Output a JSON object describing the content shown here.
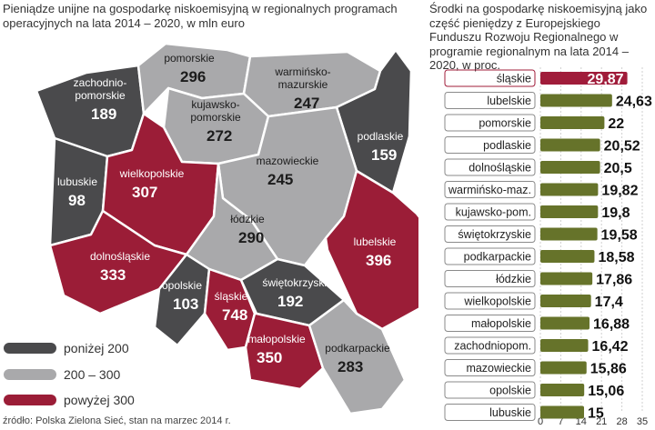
{
  "left_title": "Pieniądze unijne na gospodarkę niskoemisyjną w regionalnych programach operacyjnych na lata 2014 – 2020, w mln euro",
  "right_title": "Środki na gospodarkę niskoemisyjną jako część pieniędzy z Europejskiego Funduszu Rozwoju Regionalnego w programie regionalnym na lata 2014 – 2020, w proc.",
  "source": "źródło: Polska Zielona Sieć, stan na marzec 2014 r.",
  "colors": {
    "dark": "#4a4a4c",
    "mid": "#a9a9ab",
    "red": "#9b1d37",
    "bar": "#66732a",
    "highlight": "#a01c3a"
  },
  "legend": [
    {
      "label": "poniżej 200",
      "color": "#4a4a4c"
    },
    {
      "label": "200 – 300",
      "color": "#a9a9ab"
    },
    {
      "label": "powyżej 300",
      "color": "#9b1d37"
    }
  ],
  "chart_data": [
    {
      "type": "choropleth-map",
      "regions": [
        {
          "name": "zachodnio-pomorskie",
          "label_lines": [
            "zachodnio-",
            "pomorskie"
          ],
          "value": 189,
          "class": "dark"
        },
        {
          "name": "pomorskie",
          "label_lines": [
            "pomorskie"
          ],
          "value": 296,
          "class": "mid"
        },
        {
          "name": "warmińsko-mazurskie",
          "label_lines": [
            "warmińsko-",
            "mazurskie"
          ],
          "value": 247,
          "class": "mid"
        },
        {
          "name": "podlaskie",
          "label_lines": [
            "podlaskie"
          ],
          "value": 159,
          "class": "dark"
        },
        {
          "name": "kujawsko-pomorskie",
          "label_lines": [
            "kujawsko-",
            "pomorskie"
          ],
          "value": 272,
          "class": "mid"
        },
        {
          "name": "lubuskie",
          "label_lines": [
            "lubuskie"
          ],
          "value": 98,
          "class": "dark"
        },
        {
          "name": "wielkopolskie",
          "label_lines": [
            "wielkopolskie"
          ],
          "value": 307,
          "class": "red"
        },
        {
          "name": "mazowieckie",
          "label_lines": [
            "mazowieckie"
          ],
          "value": 245,
          "class": "mid"
        },
        {
          "name": "łódzkie",
          "label_lines": [
            "łódzkie"
          ],
          "value": 290,
          "class": "mid"
        },
        {
          "name": "lubelskie",
          "label_lines": [
            "lubelskie"
          ],
          "value": 396,
          "class": "red"
        },
        {
          "name": "dolnośląskie",
          "label_lines": [
            "dolnośląskie"
          ],
          "value": 333,
          "class": "red"
        },
        {
          "name": "opolskie",
          "label_lines": [
            "opolskie"
          ],
          "value": 103,
          "class": "dark"
        },
        {
          "name": "śląskie",
          "label_lines": [
            "śląskie"
          ],
          "value": 748,
          "class": "red"
        },
        {
          "name": "świętokrzyskie",
          "label_lines": [
            "świętokrzyskie"
          ],
          "value": 192,
          "class": "dark"
        },
        {
          "name": "małopolskie",
          "label_lines": [
            "małopolskie"
          ],
          "value": 350,
          "class": "red"
        },
        {
          "name": "podkarpackie",
          "label_lines": [
            "podkarpackie"
          ],
          "value": 283,
          "class": "mid"
        }
      ]
    },
    {
      "type": "bar",
      "orientation": "horizontal",
      "categories": [
        "śląskie",
        "lubelskie",
        "pomorskie",
        "podlaskie",
        "dolnośląskie",
        "warmińsko-maz.",
        "kujawsko-pom.",
        "świętokrzyskie",
        "podkarpackie",
        "łódzkie",
        "wielkopolskie",
        "małopolskie",
        "zachodniopom.",
        "mazowieckie",
        "opolskie",
        "lubuskie"
      ],
      "values": [
        29.87,
        24.63,
        22,
        20.52,
        20.5,
        19.82,
        19.8,
        19.58,
        18.58,
        17.86,
        17.4,
        16.88,
        16.42,
        15.86,
        15.06,
        15
      ],
      "value_labels": [
        "29,87",
        "24,63",
        "22",
        "20,52",
        "20,5",
        "19,82",
        "19,8",
        "19,58",
        "18,58",
        "17,86",
        "17,4",
        "16,88",
        "16,42",
        "15,86",
        "15,06",
        "15"
      ],
      "highlight": "śląskie",
      "xlim": [
        0,
        35
      ],
      "xticks": [
        0,
        7,
        14,
        21,
        28,
        35
      ],
      "grid": true
    }
  ]
}
